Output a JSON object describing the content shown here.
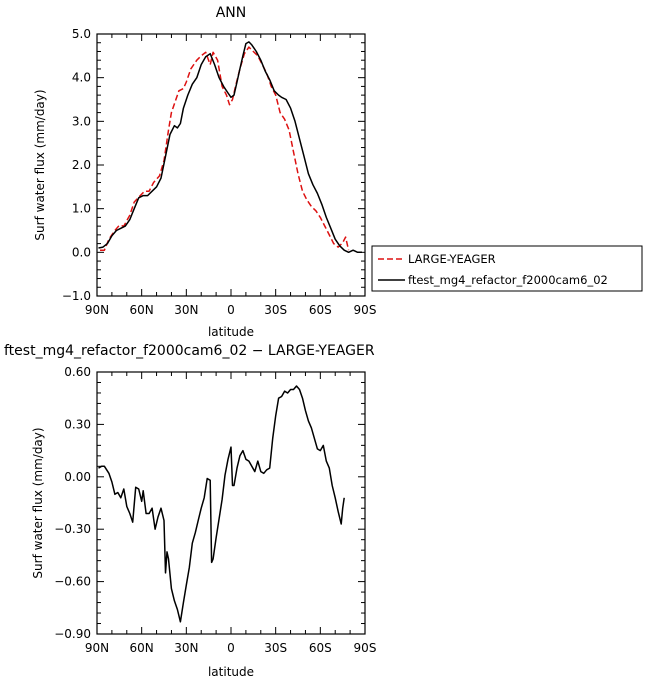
{
  "chart_data": [
    {
      "type": "line",
      "title": "ANN",
      "xlabel": "latitude",
      "ylabel": "Surf water flux (mm/day)",
      "xlim": [
        -90,
        90
      ],
      "ylim": [
        -1.0,
        5.0
      ],
      "x_ticks": [
        -90,
        -60,
        -30,
        0,
        30,
        60,
        90
      ],
      "x_tick_labels": [
        "90N",
        "60N",
        "30N",
        "0",
        "30S",
        "60S",
        "90S"
      ],
      "y_ticks": [
        -1.0,
        0.0,
        1.0,
        2.0,
        3.0,
        4.0,
        5.0
      ],
      "y_tick_labels": [
        "−1.0",
        "0.0",
        "1.0",
        "2.0",
        "3.0",
        "4.0",
        "5.0"
      ],
      "legend_position": "right, lower",
      "grid": false,
      "series": [
        {
          "name": "LARGE-YEAGER",
          "color": "#dd1111",
          "dash": "dashed",
          "points": [
            [
              -88,
              0.05
            ],
            [
              -85,
              0.05
            ],
            [
              -82,
              0.3
            ],
            [
              -78,
              0.5
            ],
            [
              -75,
              0.62
            ],
            [
              -72,
              0.6
            ],
            [
              -68,
              0.85
            ],
            [
              -65,
              1.15
            ],
            [
              -61,
              1.3
            ],
            [
              -58,
              1.4
            ],
            [
              -55,
              1.4
            ],
            [
              -52,
              1.6
            ],
            [
              -48,
              1.75
            ],
            [
              -45,
              2.1
            ],
            [
              -42,
              2.8
            ],
            [
              -40,
              3.2
            ],
            [
              -37,
              3.5
            ],
            [
              -35,
              3.7
            ],
            [
              -32,
              3.75
            ],
            [
              -30,
              3.9
            ],
            [
              -27,
              4.2
            ],
            [
              -23,
              4.4
            ],
            [
              -20,
              4.5
            ],
            [
              -17,
              4.58
            ],
            [
              -14,
              4.3
            ],
            [
              -12,
              4.58
            ],
            [
              -9,
              4.4
            ],
            [
              -6,
              3.8
            ],
            [
              -3,
              3.6
            ],
            [
              -1,
              3.38
            ],
            [
              1,
              3.5
            ],
            [
              3,
              3.8
            ],
            [
              6,
              4.2
            ],
            [
              9,
              4.55
            ],
            [
              12,
              4.7
            ],
            [
              15,
              4.6
            ],
            [
              18,
              4.5
            ],
            [
              21,
              4.3
            ],
            [
              24,
              4.1
            ],
            [
              27,
              3.8
            ],
            [
              30,
              3.6
            ],
            [
              33,
              3.2
            ],
            [
              36,
              3.05
            ],
            [
              39,
              2.8
            ],
            [
              42,
              2.3
            ],
            [
              45,
              1.8
            ],
            [
              48,
              1.4
            ],
            [
              51,
              1.2
            ],
            [
              54,
              1.05
            ],
            [
              57,
              0.95
            ],
            [
              60,
              0.8
            ],
            [
              63,
              0.6
            ],
            [
              66,
              0.4
            ],
            [
              69,
              0.2
            ],
            [
              72,
              0.12
            ],
            [
              75,
              0.22
            ],
            [
              77,
              0.35
            ],
            [
              79,
              0.05
            ]
          ]
        },
        {
          "name": "ftest_mg4_refactor_f2000cam6_02",
          "color": "#000000",
          "dash": "solid",
          "points": [
            [
              -89,
              0.1
            ],
            [
              -86,
              0.12
            ],
            [
              -83,
              0.2
            ],
            [
              -80,
              0.38
            ],
            [
              -77,
              0.5
            ],
            [
              -74,
              0.55
            ],
            [
              -71,
              0.6
            ],
            [
              -68,
              0.75
            ],
            [
              -65,
              1.0
            ],
            [
              -62,
              1.25
            ],
            [
              -59,
              1.3
            ],
            [
              -56,
              1.3
            ],
            [
              -53,
              1.4
            ],
            [
              -50,
              1.5
            ],
            [
              -47,
              1.7
            ],
            [
              -44,
              2.2
            ],
            [
              -41,
              2.7
            ],
            [
              -38,
              2.9
            ],
            [
              -36,
              2.85
            ],
            [
              -34,
              2.95
            ],
            [
              -32,
              3.3
            ],
            [
              -29,
              3.6
            ],
            [
              -26,
              3.85
            ],
            [
              -23,
              4.0
            ],
            [
              -20,
              4.3
            ],
            [
              -17,
              4.48
            ],
            [
              -14,
              4.55
            ],
            [
              -11,
              4.3
            ],
            [
              -8,
              4.0
            ],
            [
              -5,
              3.8
            ],
            [
              -2,
              3.65
            ],
            [
              0,
              3.55
            ],
            [
              2,
              3.6
            ],
            [
              4,
              3.9
            ],
            [
              6,
              4.2
            ],
            [
              8,
              4.5
            ],
            [
              10,
              4.78
            ],
            [
              12,
              4.82
            ],
            [
              14,
              4.75
            ],
            [
              17,
              4.6
            ],
            [
              20,
              4.4
            ],
            [
              23,
              4.15
            ],
            [
              26,
              3.95
            ],
            [
              29,
              3.7
            ],
            [
              32,
              3.6
            ],
            [
              34,
              3.55
            ],
            [
              37,
              3.5
            ],
            [
              40,
              3.3
            ],
            [
              43,
              3.0
            ],
            [
              46,
              2.6
            ],
            [
              49,
              2.2
            ],
            [
              52,
              1.8
            ],
            [
              55,
              1.55
            ],
            [
              58,
              1.35
            ],
            [
              61,
              1.1
            ],
            [
              64,
              0.8
            ],
            [
              67,
              0.55
            ],
            [
              70,
              0.3
            ],
            [
              73,
              0.15
            ],
            [
              76,
              0.05
            ],
            [
              79,
              0.0
            ],
            [
              82,
              0.05
            ],
            [
              85,
              0.0
            ],
            [
              88,
              0.0
            ]
          ]
        }
      ]
    },
    {
      "type": "line",
      "title": "ftest_mg4_refactor_f2000cam6_02 − LARGE-YEAGER",
      "xlabel": "latitude",
      "ylabel": "Surf water flux (mm/day)",
      "xlim": [
        -90,
        90
      ],
      "ylim": [
        -0.9,
        0.6
      ],
      "x_ticks": [
        -90,
        -60,
        -30,
        0,
        30,
        60,
        90
      ],
      "x_tick_labels": [
        "90N",
        "60N",
        "30N",
        "0",
        "30S",
        "60S",
        "90S"
      ],
      "y_ticks": [
        -0.9,
        -0.6,
        -0.3,
        0.0,
        0.3,
        0.6
      ],
      "y_tick_labels": [
        "−0.90",
        "−0.60",
        "−0.30",
        "0.00",
        "0.30",
        "0.60"
      ],
      "grid": false,
      "series": [
        {
          "color": "#000000",
          "dash": "solid",
          "points": [
            [
              -89,
              0.05
            ],
            [
              -87,
              0.06
            ],
            [
              -85,
              0.06
            ],
            [
              -82,
              0.02
            ],
            [
              -80,
              -0.03
            ],
            [
              -78,
              -0.1
            ],
            [
              -76,
              -0.09
            ],
            [
              -74,
              -0.12
            ],
            [
              -72,
              -0.07
            ],
            [
              -70,
              -0.17
            ],
            [
              -68,
              -0.21
            ],
            [
              -66,
              -0.26
            ],
            [
              -64,
              -0.06
            ],
            [
              -62,
              -0.07
            ],
            [
              -60,
              -0.14
            ],
            [
              -59,
              -0.08
            ],
            [
              -57,
              -0.21
            ],
            [
              -55,
              -0.21
            ],
            [
              -53,
              -0.18
            ],
            [
              -51,
              -0.3
            ],
            [
              -49,
              -0.23
            ],
            [
              -47,
              -0.18
            ],
            [
              -45,
              -0.25
            ],
            [
              -44,
              -0.55
            ],
            [
              -43,
              -0.43
            ],
            [
              -42,
              -0.47
            ],
            [
              -40,
              -0.64
            ],
            [
              -38,
              -0.71
            ],
            [
              -36,
              -0.76
            ],
            [
              -34,
              -0.83
            ],
            [
              -32,
              -0.72
            ],
            [
              -30,
              -0.62
            ],
            [
              -28,
              -0.52
            ],
            [
              -26,
              -0.38
            ],
            [
              -24,
              -0.32
            ],
            [
              -22,
              -0.25
            ],
            [
              -20,
              -0.18
            ],
            [
              -18,
              -0.12
            ],
            [
              -16,
              -0.01
            ],
            [
              -14,
              -0.02
            ],
            [
              -13,
              -0.49
            ],
            [
              -12,
              -0.47
            ],
            [
              -10,
              -0.35
            ],
            [
              -8,
              -0.24
            ],
            [
              -6,
              -0.13
            ],
            [
              -4,
              0.01
            ],
            [
              -2,
              0.1
            ],
            [
              0,
              0.17
            ],
            [
              1,
              -0.05
            ],
            [
              2,
              -0.05
            ],
            [
              4,
              0.05
            ],
            [
              6,
              0.12
            ],
            [
              8,
              0.15
            ],
            [
              10,
              0.1
            ],
            [
              12,
              0.09
            ],
            [
              14,
              0.06
            ],
            [
              16,
              0.03
            ],
            [
              18,
              0.09
            ],
            [
              20,
              0.03
            ],
            [
              22,
              0.02
            ],
            [
              24,
              0.04
            ],
            [
              26,
              0.05
            ],
            [
              28,
              0.22
            ],
            [
              30,
              0.35
            ],
            [
              32,
              0.45
            ],
            [
              34,
              0.46
            ],
            [
              36,
              0.49
            ],
            [
              38,
              0.48
            ],
            [
              40,
              0.5
            ],
            [
              42,
              0.5
            ],
            [
              44,
              0.52
            ],
            [
              46,
              0.5
            ],
            [
              48,
              0.45
            ],
            [
              50,
              0.38
            ],
            [
              52,
              0.32
            ],
            [
              54,
              0.28
            ],
            [
              56,
              0.22
            ],
            [
              58,
              0.16
            ],
            [
              60,
              0.15
            ],
            [
              62,
              0.18
            ],
            [
              64,
              0.09
            ],
            [
              66,
              0.05
            ],
            [
              68,
              -0.05
            ],
            [
              70,
              -0.12
            ],
            [
              72,
              -0.2
            ],
            [
              74,
              -0.27
            ],
            [
              75,
              -0.18
            ],
            [
              76,
              -0.12
            ]
          ]
        }
      ]
    }
  ]
}
